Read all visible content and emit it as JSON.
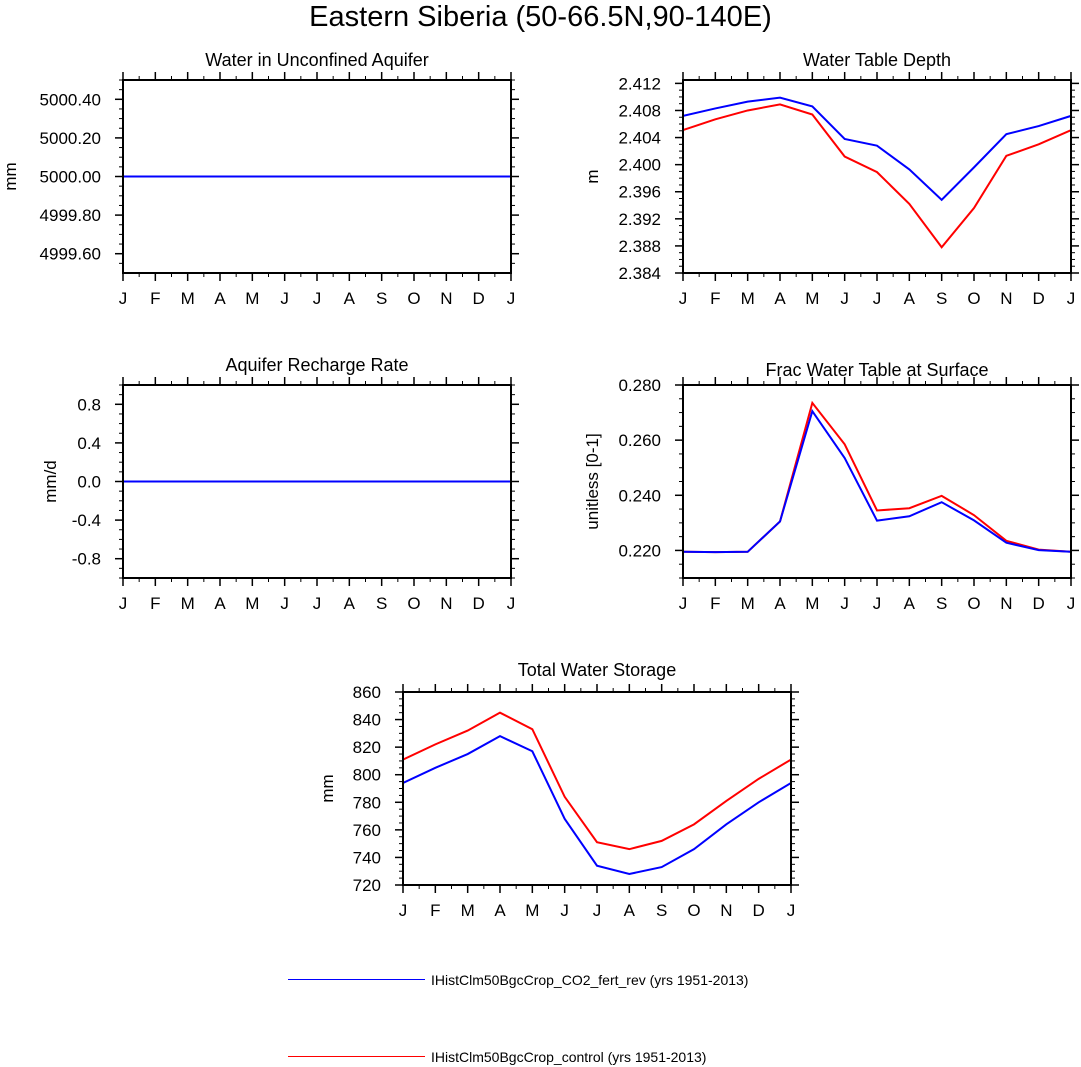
{
  "title": "Eastern Siberia (50-66.5N,90-140E)",
  "colors": {
    "series1": "#0000ff",
    "series2": "#ff0000"
  },
  "legend": [
    {
      "label": "IHistClm50BgcCrop_CO2_fert_rev (yrs 1951-2013)",
      "color": "#0000ff"
    },
    {
      "label": "IHistClm50BgcCrop_control (yrs 1951-2013)",
      "color": "#ff0000"
    }
  ],
  "chart_data": [
    {
      "id": "aquifer-water",
      "type": "line",
      "title": "Water in Unconfined Aquifer",
      "ylabel": "mm",
      "xlabel": "",
      "categories": [
        "J",
        "F",
        "M",
        "A",
        "M",
        "J",
        "J",
        "A",
        "S",
        "O",
        "N",
        "D",
        "J"
      ],
      "ylim": [
        4999.5,
        5000.5
      ],
      "yticks": [
        4999.6,
        4999.8,
        5000.0,
        5000.2,
        5000.4
      ],
      "ytick_labels": [
        "4999.60",
        "4999.80",
        "5000.00",
        "5000.20",
        "5000.40"
      ],
      "series": [
        {
          "color": "#ff0000",
          "values": [
            5000,
            5000,
            5000,
            5000,
            5000,
            5000,
            5000,
            5000,
            5000,
            5000,
            5000,
            5000,
            5000
          ]
        },
        {
          "color": "#0000ff",
          "values": [
            5000,
            5000,
            5000,
            5000,
            5000,
            5000,
            5000,
            5000,
            5000,
            5000,
            5000,
            5000,
            5000
          ]
        }
      ]
    },
    {
      "id": "water-table-depth",
      "type": "line",
      "title": "Water Table Depth",
      "ylabel": "m",
      "xlabel": "",
      "categories": [
        "J",
        "F",
        "M",
        "A",
        "M",
        "J",
        "J",
        "A",
        "S",
        "O",
        "N",
        "D",
        "J"
      ],
      "ylim": [
        2.384,
        2.4125
      ],
      "yticks": [
        2.384,
        2.388,
        2.392,
        2.396,
        2.4,
        2.404,
        2.408,
        2.412
      ],
      "ytick_labels": [
        "2.384",
        "2.388",
        "2.392",
        "2.396",
        "2.400",
        "2.404",
        "2.408",
        "2.412"
      ],
      "series": [
        {
          "color": "#ff0000",
          "values": [
            2.4051,
            2.4067,
            2.408,
            2.4089,
            2.4074,
            2.4012,
            2.3989,
            2.3942,
            2.3878,
            2.3936,
            2.4013,
            2.403,
            2.4051
          ]
        },
        {
          "color": "#0000ff",
          "values": [
            2.4072,
            2.4083,
            2.4093,
            2.4099,
            2.4086,
            2.4038,
            2.4028,
            2.3993,
            2.3948,
            2.3996,
            2.4045,
            2.4057,
            2.4072
          ]
        }
      ]
    },
    {
      "id": "aquifer-recharge",
      "type": "line",
      "title": "Aquifer Recharge Rate",
      "ylabel": "mm/d",
      "xlabel": "",
      "categories": [
        "J",
        "F",
        "M",
        "A",
        "M",
        "J",
        "J",
        "A",
        "S",
        "O",
        "N",
        "D",
        "J"
      ],
      "ylim": [
        -1.0,
        1.0
      ],
      "yticks": [
        -0.8,
        -0.4,
        0.0,
        0.4,
        0.8
      ],
      "ytick_labels": [
        "-0.8",
        "-0.4",
        "0.0",
        "0.4",
        "0.8"
      ],
      "series": [
        {
          "color": "#ff0000",
          "values": [
            0,
            0,
            0,
            0,
            0,
            0,
            0,
            0,
            0,
            0,
            0,
            0,
            0
          ]
        },
        {
          "color": "#0000ff",
          "values": [
            0,
            0,
            0,
            0,
            0,
            0,
            0,
            0,
            0,
            0,
            0,
            0,
            0
          ]
        }
      ]
    },
    {
      "id": "frac-water-table",
      "type": "line",
      "title": "Frac Water Table at Surface",
      "ylabel": "unitless [0-1]",
      "xlabel": "",
      "categories": [
        "J",
        "F",
        "M",
        "A",
        "M",
        "J",
        "J",
        "A",
        "S",
        "O",
        "N",
        "D",
        "J"
      ],
      "ylim": [
        0.21,
        0.28
      ],
      "yticks": [
        0.22,
        0.24,
        0.26,
        0.28
      ],
      "ytick_labels": [
        "0.220",
        "0.240",
        "0.260",
        "0.280"
      ],
      "series": [
        {
          "color": "#ff0000",
          "values": [
            0.2195,
            0.2194,
            0.2195,
            0.2305,
            0.2735,
            0.2585,
            0.2345,
            0.2353,
            0.2398,
            0.2328,
            0.2235,
            0.2203,
            0.2195
          ]
        },
        {
          "color": "#0000ff",
          "values": [
            0.2195,
            0.2194,
            0.2195,
            0.2305,
            0.2705,
            0.2535,
            0.2308,
            0.2324,
            0.2375,
            0.2309,
            0.2228,
            0.2201,
            0.2195
          ]
        }
      ]
    },
    {
      "id": "total-water-storage",
      "type": "line",
      "title": "Total Water Storage",
      "ylabel": "mm",
      "xlabel": "",
      "categories": [
        "J",
        "F",
        "M",
        "A",
        "M",
        "J",
        "J",
        "A",
        "S",
        "O",
        "N",
        "D",
        "J"
      ],
      "ylim": [
        720,
        860
      ],
      "yticks": [
        720,
        740,
        760,
        780,
        800,
        820,
        840,
        860
      ],
      "ytick_labels": [
        "720",
        "740",
        "760",
        "780",
        "800",
        "820",
        "840",
        "860"
      ],
      "series": [
        {
          "color": "#ff0000",
          "values": [
            811,
            822,
            832,
            845,
            833,
            784,
            751,
            746,
            752,
            764,
            781,
            797,
            811
          ]
        },
        {
          "color": "#0000ff",
          "values": [
            794,
            805,
            815,
            828,
            817,
            768,
            734,
            728,
            733,
            746,
            764,
            780,
            794
          ]
        }
      ]
    }
  ]
}
